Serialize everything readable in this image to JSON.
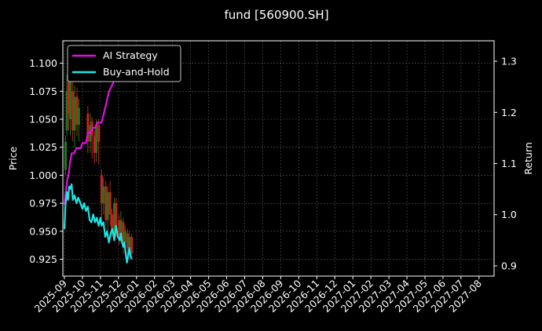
{
  "chart_data": {
    "type": "line",
    "title": "fund [560900.SH]",
    "ylabel_left": "Price",
    "ylabel_right": "Return",
    "ylim_left": [
      0.91,
      1.12
    ],
    "ylim_right": [
      0.88,
      1.34
    ],
    "yticks_left": [
      "0.925",
      "0.950",
      "0.975",
      "1.000",
      "1.025",
      "1.050",
      "1.075",
      "1.100"
    ],
    "yticks_right": [
      "0.9",
      "1.0",
      "1.1",
      "1.2",
      "1.3"
    ],
    "xticks": [
      "2025-09",
      "2025-10",
      "2025-11",
      "2025-12",
      "2026-01",
      "2026-02",
      "2026-03",
      "2026-04",
      "2026-05",
      "2026-06",
      "2026-07",
      "2026-08",
      "2026-09",
      "2026-10",
      "2026-11",
      "2026-12",
      "2027-01",
      "2027-02",
      "2027-03",
      "2027-04",
      "2027-05",
      "2027-06",
      "2027-07",
      "2027-08"
    ],
    "grid": true,
    "legend": "top-left",
    "candles": {
      "up_color": "#1a7a1a",
      "down_color": "#c81e1e",
      "points": [
        {
          "x": "2025-09-03",
          "o": 1.005,
          "c": 1.03,
          "h": 1.035,
          "l": 1.0
        },
        {
          "x": "2025-09-05",
          "o": 1.04,
          "c": 1.075,
          "h": 1.09,
          "l": 1.035
        },
        {
          "x": "2025-09-08",
          "o": 1.09,
          "c": 1.055,
          "h": 1.095,
          "l": 1.04
        },
        {
          "x": "2025-09-11",
          "o": 1.05,
          "c": 1.085,
          "h": 1.095,
          "l": 1.035
        },
        {
          "x": "2025-09-15",
          "o": 1.075,
          "c": 1.04,
          "h": 1.085,
          "l": 1.03
        },
        {
          "x": "2025-09-18",
          "o": 1.04,
          "c": 1.07,
          "h": 1.08,
          "l": 1.025
        },
        {
          "x": "2025-09-22",
          "o": 1.07,
          "c": 1.045,
          "h": 1.078,
          "l": 1.035
        },
        {
          "x": "2025-09-25",
          "o": 1.045,
          "c": 1.06,
          "h": 1.068,
          "l": 1.03
        },
        {
          "x": "2025-10-10",
          "o": 1.055,
          "c": 1.03,
          "h": 1.062,
          "l": 1.02
        },
        {
          "x": "2025-10-14",
          "o": 1.03,
          "c": 1.045,
          "h": 1.055,
          "l": 1.02
        },
        {
          "x": "2025-10-17",
          "o": 1.048,
          "c": 1.035,
          "h": 1.052,
          "l": 1.015
        },
        {
          "x": "2025-10-21",
          "o": 1.035,
          "c": 1.02,
          "h": 1.04,
          "l": 1.01
        },
        {
          "x": "2025-10-24",
          "o": 1.02,
          "c": 1.045,
          "h": 1.05,
          "l": 1.012
        },
        {
          "x": "2025-10-28",
          "o": 1.045,
          "c": 1.03,
          "h": 1.05,
          "l": 1.01
        },
        {
          "x": "2025-11-03",
          "o": 1.0,
          "c": 0.975,
          "h": 1.005,
          "l": 0.96
        },
        {
          "x": "2025-11-06",
          "o": 0.975,
          "c": 0.99,
          "h": 0.998,
          "l": 0.965
        },
        {
          "x": "2025-11-10",
          "o": 0.99,
          "c": 0.96,
          "h": 0.995,
          "l": 0.955
        },
        {
          "x": "2025-11-13",
          "o": 0.96,
          "c": 0.985,
          "h": 0.99,
          "l": 0.95
        },
        {
          "x": "2025-11-17",
          "o": 0.985,
          "c": 0.965,
          "h": 0.995,
          "l": 0.955
        },
        {
          "x": "2025-11-20",
          "o": 0.965,
          "c": 0.95,
          "h": 0.97,
          "l": 0.945
        },
        {
          "x": "2025-11-24",
          "o": 0.95,
          "c": 0.975,
          "h": 0.98,
          "l": 0.942
        },
        {
          "x": "2025-11-27",
          "o": 0.975,
          "c": 0.955,
          "h": 0.98,
          "l": 0.945
        },
        {
          "x": "2025-12-02",
          "o": 0.96,
          "c": 0.945,
          "h": 0.965,
          "l": 0.938
        },
        {
          "x": "2025-12-05",
          "o": 0.945,
          "c": 0.96,
          "h": 0.968,
          "l": 0.94
        },
        {
          "x": "2025-12-09",
          "o": 0.958,
          "c": 0.94,
          "h": 0.962,
          "l": 0.93
        },
        {
          "x": "2025-12-12",
          "o": 0.94,
          "c": 0.95,
          "h": 0.955,
          "l": 0.932
        },
        {
          "x": "2025-12-16",
          "o": 0.948,
          "c": 0.935,
          "h": 0.952,
          "l": 0.928
        },
        {
          "x": "2025-12-19",
          "o": 0.935,
          "c": 0.945,
          "h": 0.95,
          "l": 0.93
        },
        {
          "x": "2025-12-23",
          "o": 0.945,
          "c": 0.93,
          "h": 0.948,
          "l": 0.925
        }
      ]
    },
    "series": [
      {
        "name": "AI Strategy",
        "color": "#e10ee1",
        "axis": "right",
        "x": [
          "2025-09-01",
          "2025-09-04",
          "2025-09-06",
          "2025-09-08",
          "2025-09-10",
          "2025-09-13",
          "2025-09-17",
          "2025-09-21",
          "2025-09-25",
          "2025-09-28",
          "2025-10-01",
          "2025-10-04",
          "2025-10-07",
          "2025-10-10",
          "2025-10-14",
          "2025-10-18",
          "2025-10-22",
          "2025-10-26",
          "2025-10-30",
          "2025-11-03",
          "2025-11-07",
          "2025-11-11",
          "2025-11-15",
          "2025-11-19",
          "2025-11-23",
          "2025-11-27",
          "2025-12-01",
          "2025-12-05",
          "2025-12-08",
          "2025-12-11"
        ],
        "values": [
          1.02,
          1.05,
          1.07,
          1.08,
          1.1,
          1.12,
          1.12,
          1.13,
          1.13,
          1.13,
          1.14,
          1.14,
          1.14,
          1.16,
          1.16,
          1.17,
          1.17,
          1.18,
          1.18,
          1.18,
          1.2,
          1.22,
          1.24,
          1.25,
          1.26,
          1.28,
          1.29,
          1.3,
          1.31,
          1.33
        ]
      },
      {
        "name": "Buy-and-Hold",
        "color": "#1ae5e5",
        "axis": "left",
        "x": [
          "2025-09-01",
          "2025-09-03",
          "2025-09-05",
          "2025-09-07",
          "2025-09-09",
          "2025-09-11",
          "2025-09-13",
          "2025-09-15",
          "2025-09-18",
          "2025-09-21",
          "2025-09-24",
          "2025-09-27",
          "2025-10-01",
          "2025-10-04",
          "2025-10-07",
          "2025-10-10",
          "2025-10-13",
          "2025-10-16",
          "2025-10-19",
          "2025-10-22",
          "2025-10-25",
          "2025-10-28",
          "2025-10-31",
          "2025-11-03",
          "2025-11-06",
          "2025-11-09",
          "2025-11-12",
          "2025-11-15",
          "2025-11-18",
          "2025-11-21",
          "2025-11-24",
          "2025-11-27",
          "2025-11-30",
          "2025-12-03",
          "2025-12-05",
          "2025-12-07",
          "2025-12-09",
          "2025-12-11",
          "2025-12-13",
          "2025-12-15",
          "2025-12-17",
          "2025-12-19",
          "2025-12-21",
          "2025-12-23"
        ],
        "values": [
          0.952,
          0.975,
          0.985,
          0.978,
          0.99,
          0.988,
          0.992,
          0.978,
          0.982,
          0.975,
          0.98,
          0.976,
          0.97,
          0.975,
          0.968,
          0.972,
          0.96,
          0.958,
          0.965,
          0.958,
          0.962,
          0.955,
          0.962,
          0.955,
          0.958,
          0.945,
          0.95,
          0.94,
          0.948,
          0.952,
          0.942,
          0.955,
          0.945,
          0.942,
          0.948,
          0.94,
          0.936,
          0.94,
          0.93,
          0.922,
          0.928,
          0.935,
          0.928,
          0.925
        ]
      }
    ]
  }
}
